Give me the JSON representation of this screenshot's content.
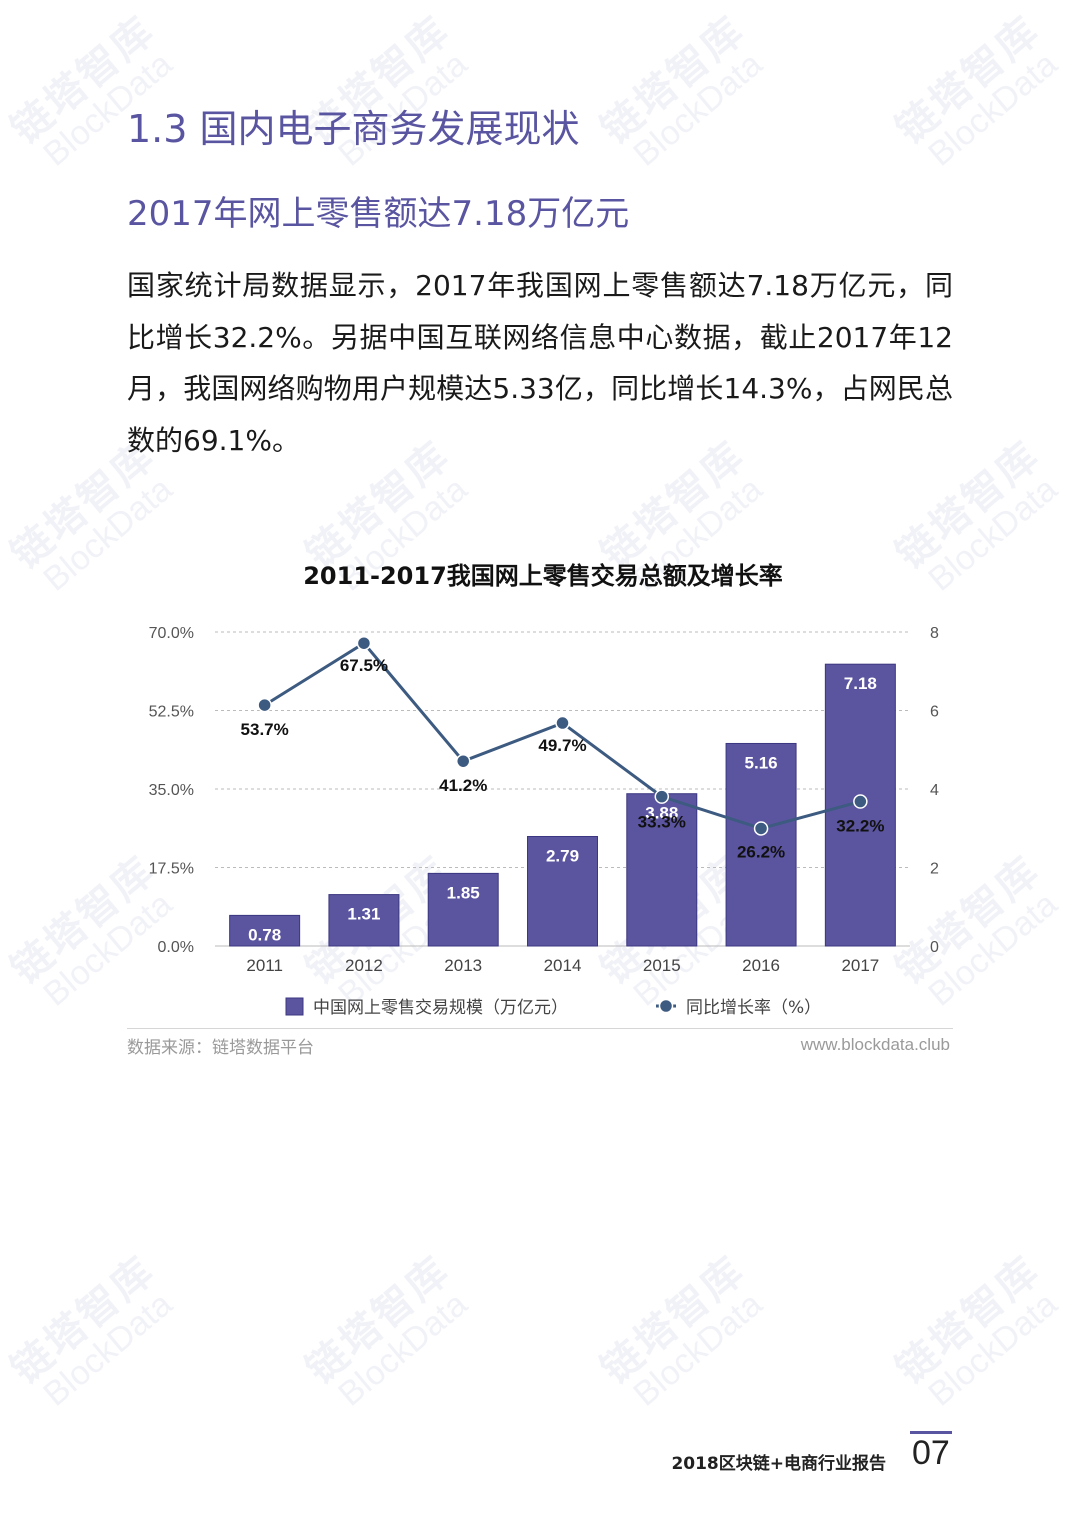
{
  "watermark": {
    "cn": "链塔智库",
    "en": "BlockData"
  },
  "section_title": "1.3 国内电子商务发展现状",
  "sub_title": "2017年网上零售额达7.18万亿元",
  "paragraph": "国家统计局数据显示，2017年我国网上零售额达7.18万亿元，同比增长32.2%。另据中国互联网络信息中心数据，截止2017年12月，我国网络购物用户规模达5.33亿，同比增长14.3%，占网民总数的69.1%。",
  "chart_data": {
    "type": "bar",
    "title": "2011-2017我国网上零售交易总额及增长率",
    "categories": [
      "2011",
      "2012",
      "2013",
      "2014",
      "2015",
      "2016",
      "2017"
    ],
    "series": [
      {
        "name": "中国网上零售交易规模（万亿元）",
        "type": "bar",
        "axis": "right",
        "values": [
          0.78,
          1.31,
          1.85,
          2.79,
          3.88,
          5.16,
          7.18
        ],
        "labels": [
          "0.78",
          "1.31",
          "1.85",
          "2.79",
          "3.88",
          "5.16",
          "7.18"
        ],
        "color": "#5b55a0"
      },
      {
        "name": "同比增长率（%）",
        "type": "line",
        "axis": "left",
        "values": [
          53.7,
          67.5,
          41.2,
          49.7,
          33.3,
          26.2,
          32.2
        ],
        "labels": [
          "53.7%",
          "67.5%",
          "41.2%",
          "49.7%",
          "33.3%",
          "26.2%",
          "32.2%"
        ],
        "color": "#3d5a80"
      }
    ],
    "y_left": {
      "ticks": [
        "0.0%",
        "17.5%",
        "35.0%",
        "52.5%",
        "70.0%"
      ],
      "ylim": [
        0,
        70
      ]
    },
    "y_right": {
      "ticks": [
        "0",
        "2",
        "4",
        "6",
        "8"
      ],
      "ylim": [
        0,
        8
      ]
    },
    "grid": true,
    "legend_position": "bottom"
  },
  "source_label": "数据来源：链塔数据平台",
  "website": "www.blockdata.club",
  "report_name": "2018区块链+电商行业报告",
  "page_number": "07",
  "colors": {
    "accent": "#5a55a0",
    "bar": "#5b55a0",
    "line": "#3d5a80"
  }
}
